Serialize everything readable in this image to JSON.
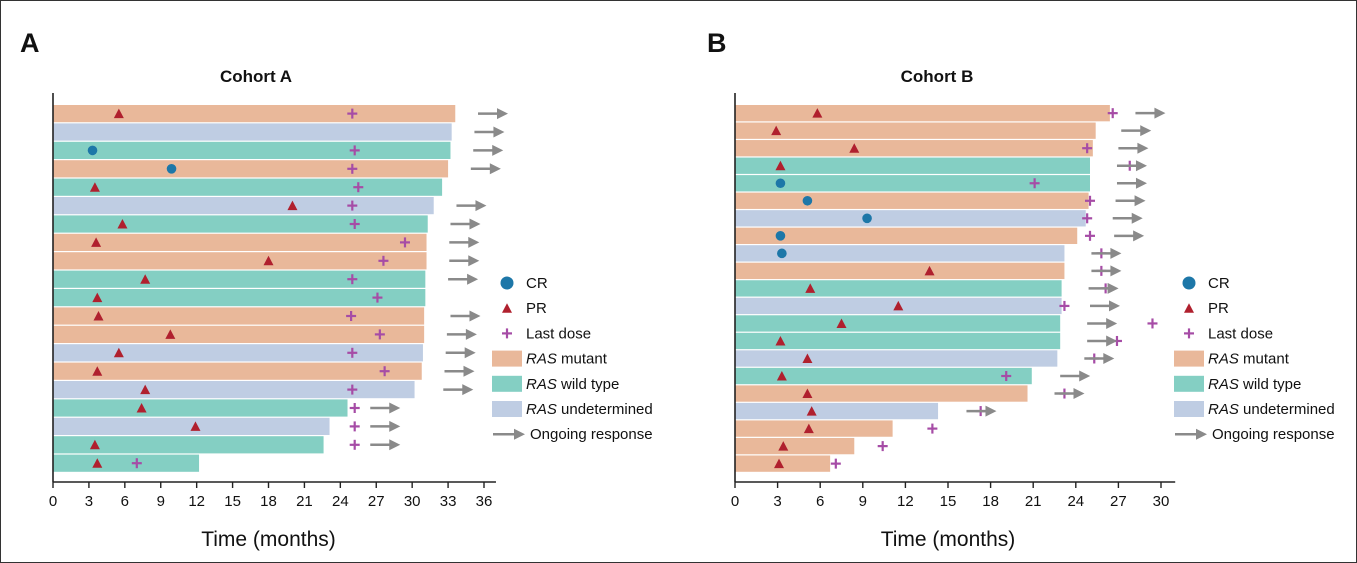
{
  "colors": {
    "RAS mutant": "#e9b89a",
    "RAS wild type": "#84cfc3",
    "RAS undetermined": "#bfcde3",
    "CR": "#1d77a8",
    "PR": "#b0202e",
    "Last dose": "#a64ca6",
    "Ongoing response": "#8a8a8a",
    "axis": "#222222"
  },
  "legend_items": [
    {
      "kind": "CR",
      "label": "CR",
      "italic": ""
    },
    {
      "kind": "PR",
      "label": "PR",
      "italic": ""
    },
    {
      "kind": "Last dose",
      "label": "Last dose",
      "italic": ""
    },
    {
      "kind": "RAS mutant",
      "label": " mutant",
      "italic": "RAS"
    },
    {
      "kind": "RAS wild type",
      "label": " wild type",
      "italic": "RAS"
    },
    {
      "kind": "RAS undetermined",
      "label": " undetermined",
      "italic": "RAS"
    },
    {
      "kind": "Ongoing response",
      "label": "Ongoing response",
      "italic": ""
    }
  ],
  "chart_data": [
    {
      "type": "bar",
      "panel_label": "A",
      "title": "Cohort A",
      "xlabel": "Time (months)",
      "xlim": [
        0,
        37
      ],
      "xticks": [
        0,
        3,
        6,
        9,
        12,
        15,
        18,
        21,
        24,
        27,
        30,
        33,
        36
      ],
      "patients": [
        {
          "group": "RAS mutant",
          "duration": 33.6,
          "pr": 5.5,
          "last_dose": 25.0,
          "ongoing_at": 35.5
        },
        {
          "group": "RAS undetermined",
          "duration": 33.3,
          "ongoing_at": 35.2
        },
        {
          "group": "RAS wild type",
          "duration": 33.2,
          "cr": 3.3,
          "last_dose": 25.2,
          "ongoing_at": 35.1
        },
        {
          "group": "RAS mutant",
          "duration": 33.0,
          "cr": 9.9,
          "last_dose": 25.0,
          "ongoing_at": 34.9
        },
        {
          "group": "RAS wild type",
          "duration": 32.5,
          "pr": 3.5,
          "last_dose": 25.5
        },
        {
          "group": "RAS undetermined",
          "duration": 31.8,
          "pr": 20.0,
          "last_dose": 25.0,
          "ongoing_at": 33.7
        },
        {
          "group": "RAS wild type",
          "duration": 31.3,
          "pr": 5.8,
          "last_dose": 25.2,
          "ongoing_at": 33.2
        },
        {
          "group": "RAS mutant",
          "duration": 31.2,
          "pr": 3.6,
          "last_dose": 29.4,
          "ongoing_at": 33.1
        },
        {
          "group": "RAS mutant",
          "duration": 31.2,
          "pr": 18.0,
          "last_dose": 27.6,
          "ongoing_at": 33.1
        },
        {
          "group": "RAS wild type",
          "duration": 31.1,
          "pr": 7.7,
          "last_dose": 25.0,
          "ongoing_at": 33.0
        },
        {
          "group": "RAS wild type",
          "duration": 31.1,
          "pr": 3.7,
          "last_dose": 27.1
        },
        {
          "group": "RAS mutant",
          "duration": 31.0,
          "pr": 3.8,
          "last_dose": 24.9,
          "ongoing_at": 33.2
        },
        {
          "group": "RAS mutant",
          "duration": 31.0,
          "pr": 9.8,
          "last_dose": 27.3,
          "ongoing_at": 32.9
        },
        {
          "group": "RAS undetermined",
          "duration": 30.9,
          "pr": 5.5,
          "last_dose": 25.0,
          "ongoing_at": 32.8
        },
        {
          "group": "RAS mutant",
          "duration": 30.8,
          "pr": 3.7,
          "last_dose": 27.7,
          "ongoing_at": 32.7
        },
        {
          "group": "RAS undetermined",
          "duration": 30.2,
          "pr": 7.7,
          "last_dose": 25.0,
          "ongoing_at": 32.6
        },
        {
          "group": "RAS wild type",
          "duration": 24.6,
          "pr": 7.4,
          "last_dose": 25.2,
          "ongoing_at": 26.5
        },
        {
          "group": "RAS undetermined",
          "duration": 23.1,
          "pr": 11.9,
          "last_dose": 25.2,
          "ongoing_at": 26.5
        },
        {
          "group": "RAS wild type",
          "duration": 22.6,
          "pr": 3.5,
          "last_dose": 25.2,
          "ongoing_at": 26.5
        },
        {
          "group": "RAS wild type",
          "duration": 12.2,
          "pr": 3.7,
          "last_dose": 7.0
        }
      ]
    },
    {
      "type": "bar",
      "panel_label": "B",
      "title": "Cohort B",
      "xlabel": "Time (months)",
      "xlim": [
        0,
        31
      ],
      "xticks": [
        0,
        3,
        6,
        9,
        12,
        15,
        18,
        21,
        24,
        27,
        30
      ],
      "patients": [
        {
          "group": "RAS mutant",
          "duration": 26.4,
          "pr": 5.8,
          "last_dose": 26.6,
          "ongoing_at": 28.2
        },
        {
          "group": "RAS mutant",
          "duration": 25.4,
          "pr": 2.9,
          "ongoing_at": 27.2
        },
        {
          "group": "RAS mutant",
          "duration": 25.2,
          "pr": 8.4,
          "last_dose": 24.8,
          "ongoing_at": 27.0
        },
        {
          "group": "RAS wild type",
          "duration": 25.0,
          "pr": 3.2,
          "last_dose": 27.8,
          "ongoing_at": 26.9
        },
        {
          "group": "RAS wild type",
          "duration": 25.0,
          "cr": 3.2,
          "last_dose": 21.1,
          "ongoing_at": 26.9
        },
        {
          "group": "RAS mutant",
          "duration": 24.9,
          "cr": 5.1,
          "last_dose": 25.0,
          "ongoing_at": 26.8
        },
        {
          "group": "RAS undetermined",
          "duration": 24.7,
          "cr": 9.3,
          "last_dose": 24.8,
          "ongoing_at": 26.6
        },
        {
          "group": "RAS mutant",
          "duration": 24.1,
          "cr": 3.2,
          "last_dose": 25.0,
          "ongoing_at": 26.7
        },
        {
          "group": "RAS undetermined",
          "duration": 23.2,
          "cr": 3.3,
          "last_dose": 25.8,
          "ongoing_at": 25.1
        },
        {
          "group": "RAS mutant",
          "duration": 23.2,
          "pr": 13.7,
          "last_dose": 25.8,
          "ongoing_at": 25.1
        },
        {
          "group": "RAS wild type",
          "duration": 23.0,
          "pr": 5.3,
          "last_dose": 26.1,
          "ongoing_at": 24.9
        },
        {
          "group": "RAS undetermined",
          "duration": 23.0,
          "pr": 11.5,
          "last_dose": 23.2,
          "ongoing_at": 25.0
        },
        {
          "group": "RAS wild type",
          "duration": 22.9,
          "pr": 7.5,
          "last_dose": 29.4,
          "ongoing_at": 24.8
        },
        {
          "group": "RAS wild type",
          "duration": 22.9,
          "pr": 3.2,
          "last_dose": 26.9,
          "ongoing_at": 24.8
        },
        {
          "group": "RAS undetermined",
          "duration": 22.7,
          "pr": 5.1,
          "last_dose": 25.3,
          "ongoing_at": 24.6
        },
        {
          "group": "RAS wild type",
          "duration": 20.9,
          "pr": 3.3,
          "last_dose": 19.1,
          "ongoing_at": 22.9
        },
        {
          "group": "RAS mutant",
          "duration": 20.6,
          "pr": 5.1,
          "last_dose": 23.2,
          "ongoing_at": 22.5
        },
        {
          "group": "RAS undetermined",
          "duration": 14.3,
          "pr": 5.4,
          "last_dose": 17.3,
          "ongoing_at": 16.3
        },
        {
          "group": "RAS mutant",
          "duration": 11.1,
          "pr": 5.2,
          "last_dose": 13.9
        },
        {
          "group": "RAS mutant",
          "duration": 8.4,
          "pr": 3.4,
          "last_dose": 10.4
        },
        {
          "group": "RAS mutant",
          "duration": 6.7,
          "pr": 3.1,
          "last_dose": 7.1
        }
      ]
    }
  ]
}
